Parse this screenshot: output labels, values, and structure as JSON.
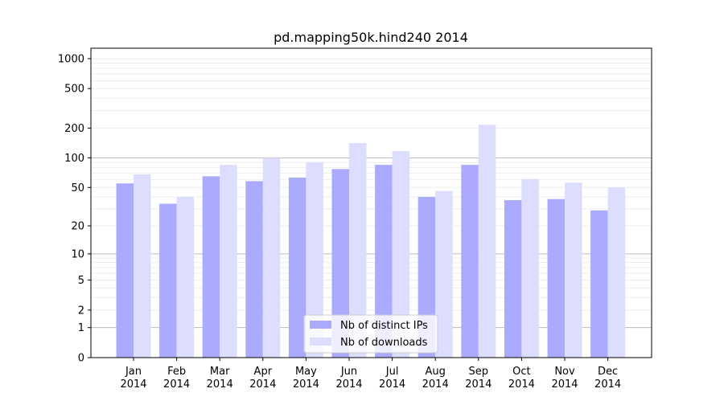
{
  "chart_data": {
    "type": "bar",
    "title": "pd.mapping50k.hind240 2014",
    "xlabel": "",
    "ylabel": "",
    "yscale": "symlog (log10(1+y))",
    "ylim": [
      0,
      1200
    ],
    "yticks": [
      0,
      1,
      2,
      5,
      10,
      20,
      50,
      100,
      200,
      500,
      1000
    ],
    "ytick_labels": [
      "0",
      "1",
      "2",
      "5",
      "10",
      "20",
      "50",
      "100",
      "200",
      "500",
      "1000"
    ],
    "categories": [
      "Jan\n2014",
      "Feb\n2014",
      "Mar\n2014",
      "Apr\n2014",
      "May\n2014",
      "Jun\n2014",
      "Jul\n2014",
      "Aug\n2014",
      "Sep\n2014",
      "Oct\n2014",
      "Nov\n2014",
      "Dec\n2014"
    ],
    "category_lines": [
      [
        "Jan",
        "2014"
      ],
      [
        "Feb",
        "2014"
      ],
      [
        "Mar",
        "2014"
      ],
      [
        "Apr",
        "2014"
      ],
      [
        "May",
        "2014"
      ],
      [
        "Jun",
        "2014"
      ],
      [
        "Jul",
        "2014"
      ],
      [
        "Aug",
        "2014"
      ],
      [
        "Sep",
        "2014"
      ],
      [
        "Oct",
        "2014"
      ],
      [
        "Nov",
        "2014"
      ],
      [
        "Dec",
        "2014"
      ]
    ],
    "series": [
      {
        "name": "Nb of distinct IPs",
        "color": "#aaaaff",
        "values": [
          55,
          34,
          65,
          58,
          63,
          77,
          85,
          40,
          85,
          37,
          38,
          29
        ]
      },
      {
        "name": "Nb of downloads",
        "color": "#ddddff",
        "values": [
          68,
          40,
          85,
          100,
          90,
          141,
          117,
          46,
          216,
          61,
          56,
          50
        ]
      }
    ],
    "grid": true,
    "legend": "bottom-center"
  }
}
